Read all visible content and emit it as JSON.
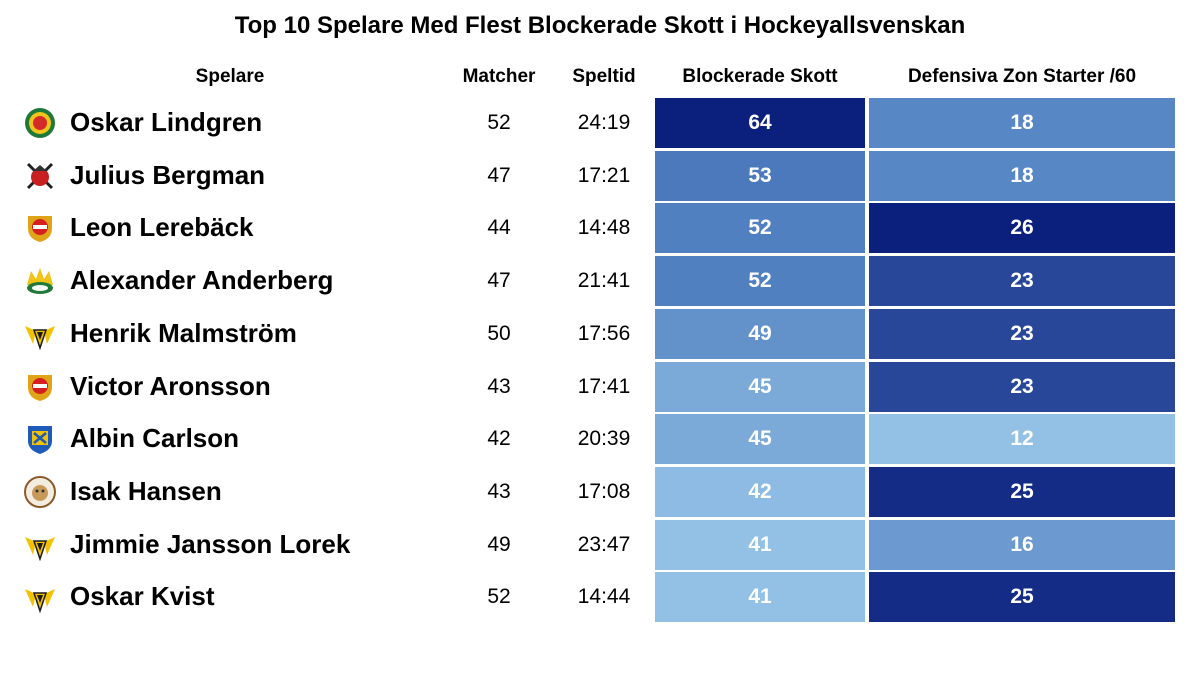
{
  "chart_data": {
    "type": "table",
    "title": "Top 10 Spelare Med Flest Blockerade Skott i Hockeyallsvenskan",
    "columns": [
      "Spelare",
      "Matcher",
      "Speltid",
      "Blockerade Skott",
      "Defensiva Zon Starter /60"
    ],
    "rows": [
      {
        "player": "Oskar Lindgren",
        "matcher": 52,
        "speltid": "24:19",
        "blocks": 64,
        "dzs60": 18,
        "logo": "modo-logo-icon"
      },
      {
        "player": "Julius Bergman",
        "matcher": 47,
        "speltid": "17:21",
        "blocks": 53,
        "dzs60": 18,
        "logo": "viking-logo-icon"
      },
      {
        "player": "Leon Lerebäck",
        "matcher": 44,
        "speltid": "14:48",
        "blocks": 52,
        "dzs60": 26,
        "logo": "almtuna-logo-icon"
      },
      {
        "player": "Alexander Anderberg",
        "matcher": 47,
        "speltid": "21:41",
        "blocks": 52,
        "dzs60": 23,
        "logo": "crown-logo-icon"
      },
      {
        "player": "Henrik Malmström",
        "matcher": 50,
        "speltid": "17:56",
        "blocks": 49,
        "dzs60": 23,
        "logo": "yellow-claw-logo-icon"
      },
      {
        "player": "Victor Aronsson",
        "matcher": 43,
        "speltid": "17:41",
        "blocks": 45,
        "dzs60": 23,
        "logo": "almtuna-logo-icon"
      },
      {
        "player": "Albin Carlson",
        "matcher": 42,
        "speltid": "20:39",
        "blocks": 45,
        "dzs60": 12,
        "logo": "blue-yellow-shield-logo-icon"
      },
      {
        "player": "Isak Hansen",
        "matcher": 43,
        "speltid": "17:08",
        "blocks": 42,
        "dzs60": 25,
        "logo": "round-crest-logo-icon"
      },
      {
        "player": "Jimmie Jansson Lorek",
        "matcher": 49,
        "speltid": "23:47",
        "blocks": 41,
        "dzs60": 16,
        "logo": "yellow-claw-logo-icon"
      },
      {
        "player": "Oskar Kvist",
        "matcher": 52,
        "speltid": "14:44",
        "blocks": 41,
        "dzs60": 25,
        "logo": "yellow-claw-logo-icon"
      }
    ],
    "color_scale": {
      "low": "#93c1e6",
      "mid": "#4e7dbf",
      "high": "#0b1f7c"
    }
  }
}
